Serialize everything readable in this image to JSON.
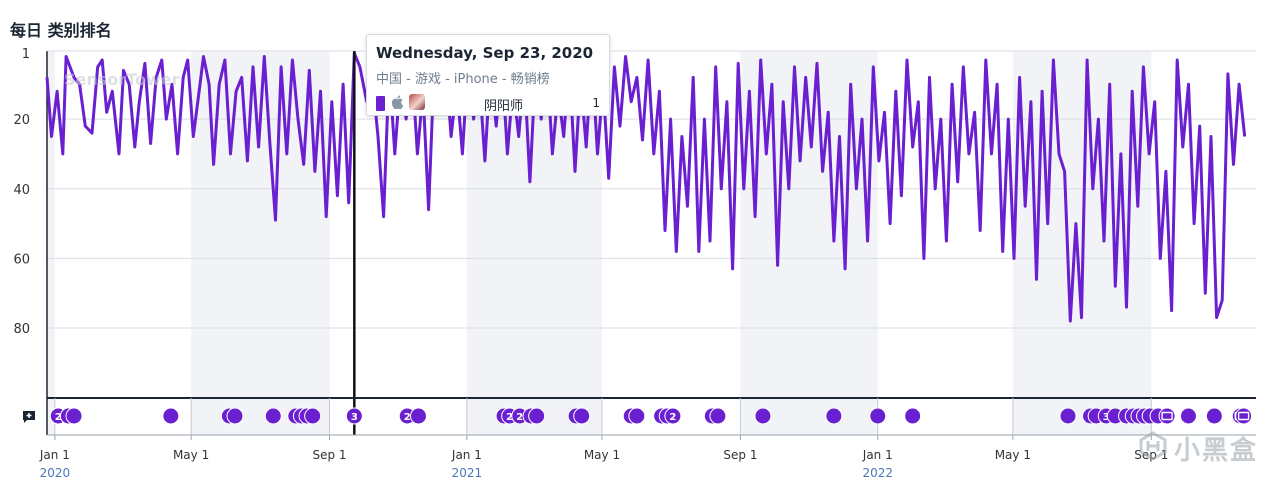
{
  "header": {
    "title": "每日 类别排名"
  },
  "chart_data": {
    "type": "line",
    "title": "每日 类别排名",
    "y_axis": {
      "ticks": [
        "1",
        "20",
        "40",
        "60",
        "80"
      ],
      "values": [
        1,
        20,
        40,
        60,
        80
      ],
      "range": [
        1,
        100
      ],
      "inverted": true
    },
    "x_axis": {
      "ticks": [
        {
          "label": "Jan 1",
          "year": "2020",
          "date": "2020-01-01"
        },
        {
          "label": "May 1",
          "year": "",
          "date": "2020-05-01"
        },
        {
          "label": "Sep 1",
          "year": "",
          "date": "2020-09-01"
        },
        {
          "label": "Jan 1",
          "year": "2021",
          "date": "2021-01-01"
        },
        {
          "label": "May 1",
          "year": "",
          "date": "2021-05-01"
        },
        {
          "label": "Sep 1",
          "year": "",
          "date": "2021-09-01"
        },
        {
          "label": "Jan 1",
          "year": "2022",
          "date": "2022-01-01"
        },
        {
          "label": "May 1",
          "year": "",
          "date": "2022-05-01"
        },
        {
          "label": "Sep 1",
          "year": "",
          "date": "2022-09-01"
        }
      ],
      "range": [
        "2019-12-25",
        "2022-12-03"
      ]
    },
    "series": [
      {
        "name": "阴阳师",
        "color": "#6a1fd1",
        "points": [
          [
            "2019-12-25",
            8
          ],
          [
            "2019-12-29",
            25
          ],
          [
            "2020-01-03",
            12
          ],
          [
            "2020-01-08",
            30
          ],
          [
            "2020-01-11",
            2
          ],
          [
            "2020-01-18",
            8
          ],
          [
            "2020-01-23",
            10
          ],
          [
            "2020-01-28",
            22
          ],
          [
            "2020-02-03",
            24
          ],
          [
            "2020-02-08",
            5
          ],
          [
            "2020-02-12",
            3
          ],
          [
            "2020-02-16",
            18
          ],
          [
            "2020-02-21",
            12
          ],
          [
            "2020-02-27",
            30
          ],
          [
            "2020-03-02",
            6
          ],
          [
            "2020-03-07",
            10
          ],
          [
            "2020-03-12",
            28
          ],
          [
            "2020-03-16",
            15
          ],
          [
            "2020-03-21",
            4
          ],
          [
            "2020-03-26",
            27
          ],
          [
            "2020-03-31",
            8
          ],
          [
            "2020-04-05",
            3
          ],
          [
            "2020-04-09",
            20
          ],
          [
            "2020-04-14",
            10
          ],
          [
            "2020-04-19",
            30
          ],
          [
            "2020-04-24",
            8
          ],
          [
            "2020-04-28",
            3
          ],
          [
            "2020-05-03",
            25
          ],
          [
            "2020-05-07",
            15
          ],
          [
            "2020-05-12",
            2
          ],
          [
            "2020-05-17",
            10
          ],
          [
            "2020-05-21",
            33
          ],
          [
            "2020-05-26",
            10
          ],
          [
            "2020-05-31",
            3
          ],
          [
            "2020-06-05",
            30
          ],
          [
            "2020-06-10",
            12
          ],
          [
            "2020-06-15",
            8
          ],
          [
            "2020-06-20",
            32
          ],
          [
            "2020-06-25",
            5
          ],
          [
            "2020-06-30",
            28
          ],
          [
            "2020-07-05",
            2
          ],
          [
            "2020-07-10",
            27
          ],
          [
            "2020-07-15",
            49
          ],
          [
            "2020-07-20",
            5
          ],
          [
            "2020-07-25",
            30
          ],
          [
            "2020-07-30",
            3
          ],
          [
            "2020-08-04",
            20
          ],
          [
            "2020-08-09",
            33
          ],
          [
            "2020-08-14",
            6
          ],
          [
            "2020-08-19",
            35
          ],
          [
            "2020-08-24",
            12
          ],
          [
            "2020-08-29",
            48
          ],
          [
            "2020-09-03",
            15
          ],
          [
            "2020-09-08",
            42
          ],
          [
            "2020-09-13",
            10
          ],
          [
            "2020-09-18",
            44
          ],
          [
            "2020-09-23",
            1
          ],
          [
            "2020-09-28",
            5
          ],
          [
            "2020-10-04",
            15
          ],
          [
            "2020-10-09",
            8
          ],
          [
            "2020-10-14",
            25
          ],
          [
            "2020-10-19",
            48
          ],
          [
            "2020-10-24",
            5
          ],
          [
            "2020-10-29",
            30
          ],
          [
            "2020-11-03",
            8
          ],
          [
            "2020-11-08",
            20
          ],
          [
            "2020-11-13",
            4
          ],
          [
            "2020-11-18",
            30
          ],
          [
            "2020-11-23",
            12
          ],
          [
            "2020-11-28",
            46
          ],
          [
            "2020-12-03",
            5
          ],
          [
            "2020-12-08",
            18
          ],
          [
            "2020-12-13",
            3
          ],
          [
            "2020-12-18",
            25
          ],
          [
            "2020-12-23",
            10
          ],
          [
            "2020-12-28",
            30
          ],
          [
            "2021-01-02",
            4
          ],
          [
            "2021-01-07",
            20
          ],
          [
            "2021-01-12",
            8
          ],
          [
            "2021-01-17",
            32
          ],
          [
            "2021-01-22",
            5
          ],
          [
            "2021-01-27",
            22
          ],
          [
            "2021-02-01",
            3
          ],
          [
            "2021-02-06",
            30
          ],
          [
            "2021-02-11",
            10
          ],
          [
            "2021-02-16",
            25
          ],
          [
            "2021-02-21",
            6
          ],
          [
            "2021-02-26",
            38
          ],
          [
            "2021-03-03",
            5
          ],
          [
            "2021-03-08",
            20
          ],
          [
            "2021-03-13",
            3
          ],
          [
            "2021-03-18",
            30
          ],
          [
            "2021-03-23",
            12
          ],
          [
            "2021-03-28",
            25
          ],
          [
            "2021-04-02",
            4
          ],
          [
            "2021-04-07",
            35
          ],
          [
            "2021-04-12",
            8
          ],
          [
            "2021-04-17",
            28
          ],
          [
            "2021-04-22",
            2
          ],
          [
            "2021-04-27",
            30
          ],
          [
            "2021-05-02",
            10
          ],
          [
            "2021-05-07",
            37
          ],
          [
            "2021-05-12",
            5
          ],
          [
            "2021-05-17",
            22
          ],
          [
            "2021-05-22",
            2
          ],
          [
            "2021-05-27",
            15
          ],
          [
            "2021-06-01",
            8
          ],
          [
            "2021-06-06",
            26
          ],
          [
            "2021-06-11",
            3
          ],
          [
            "2021-06-16",
            30
          ],
          [
            "2021-06-21",
            12
          ],
          [
            "2021-06-26",
            52
          ],
          [
            "2021-07-01",
            20
          ],
          [
            "2021-07-06",
            58
          ],
          [
            "2021-07-11",
            25
          ],
          [
            "2021-07-16",
            45
          ],
          [
            "2021-07-21",
            8
          ],
          [
            "2021-07-26",
            58
          ],
          [
            "2021-07-31",
            20
          ],
          [
            "2021-08-05",
            55
          ],
          [
            "2021-08-10",
            5
          ],
          [
            "2021-08-15",
            40
          ],
          [
            "2021-08-20",
            15
          ],
          [
            "2021-08-25",
            63
          ],
          [
            "2021-08-30",
            4
          ],
          [
            "2021-09-04",
            40
          ],
          [
            "2021-09-09",
            12
          ],
          [
            "2021-09-14",
            48
          ],
          [
            "2021-09-19",
            3
          ],
          [
            "2021-09-24",
            30
          ],
          [
            "2021-09-29",
            10
          ],
          [
            "2021-10-04",
            62
          ],
          [
            "2021-10-09",
            15
          ],
          [
            "2021-10-14",
            40
          ],
          [
            "2021-10-19",
            5
          ],
          [
            "2021-10-24",
            32
          ],
          [
            "2021-10-29",
            8
          ],
          [
            "2021-11-03",
            28
          ],
          [
            "2021-11-08",
            4
          ],
          [
            "2021-11-13",
            35
          ],
          [
            "2021-11-18",
            18
          ],
          [
            "2021-11-23",
            55
          ],
          [
            "2021-11-28",
            25
          ],
          [
            "2021-12-03",
            63
          ],
          [
            "2021-12-08",
            10
          ],
          [
            "2021-12-13",
            40
          ],
          [
            "2021-12-18",
            20
          ],
          [
            "2021-12-23",
            55
          ],
          [
            "2021-12-28",
            5
          ],
          [
            "2022-01-02",
            32
          ],
          [
            "2022-01-07",
            18
          ],
          [
            "2022-01-12",
            50
          ],
          [
            "2022-01-17",
            12
          ],
          [
            "2022-01-22",
            42
          ],
          [
            "2022-01-27",
            3
          ],
          [
            "2022-02-01",
            28
          ],
          [
            "2022-02-06",
            15
          ],
          [
            "2022-02-11",
            60
          ],
          [
            "2022-02-16",
            8
          ],
          [
            "2022-02-21",
            40
          ],
          [
            "2022-02-26",
            20
          ],
          [
            "2022-03-03",
            55
          ],
          [
            "2022-03-08",
            10
          ],
          [
            "2022-03-13",
            38
          ],
          [
            "2022-03-18",
            5
          ],
          [
            "2022-03-23",
            30
          ],
          [
            "2022-03-28",
            18
          ],
          [
            "2022-04-02",
            52
          ],
          [
            "2022-04-07",
            3
          ],
          [
            "2022-04-12",
            30
          ],
          [
            "2022-04-17",
            10
          ],
          [
            "2022-04-22",
            58
          ],
          [
            "2022-04-27",
            20
          ],
          [
            "2022-05-02",
            60
          ],
          [
            "2022-05-07",
            8
          ],
          [
            "2022-05-12",
            45
          ],
          [
            "2022-05-17",
            15
          ],
          [
            "2022-05-22",
            66
          ],
          [
            "2022-05-27",
            12
          ],
          [
            "2022-06-01",
            50
          ],
          [
            "2022-06-06",
            3
          ],
          [
            "2022-06-11",
            30
          ],
          [
            "2022-06-16",
            35
          ],
          [
            "2022-06-21",
            78
          ],
          [
            "2022-06-26",
            50
          ],
          [
            "2022-07-01",
            77
          ],
          [
            "2022-07-06",
            3
          ],
          [
            "2022-07-11",
            40
          ],
          [
            "2022-07-16",
            20
          ],
          [
            "2022-07-21",
            55
          ],
          [
            "2022-07-26",
            10
          ],
          [
            "2022-07-31",
            68
          ],
          [
            "2022-08-05",
            30
          ],
          [
            "2022-08-10",
            74
          ],
          [
            "2022-08-15",
            12
          ],
          [
            "2022-08-20",
            45
          ],
          [
            "2022-08-25",
            5
          ],
          [
            "2022-08-30",
            30
          ],
          [
            "2022-09-04",
            15
          ],
          [
            "2022-09-09",
            60
          ],
          [
            "2022-09-14",
            35
          ],
          [
            "2022-09-19",
            75
          ],
          [
            "2022-09-24",
            3
          ],
          [
            "2022-09-29",
            28
          ],
          [
            "2022-10-04",
            10
          ],
          [
            "2022-10-09",
            50
          ],
          [
            "2022-10-14",
            22
          ],
          [
            "2022-10-19",
            70
          ],
          [
            "2022-10-24",
            25
          ],
          [
            "2022-10-29",
            77
          ],
          [
            "2022-11-03",
            72
          ],
          [
            "2022-11-08",
            7
          ],
          [
            "2022-11-13",
            33
          ],
          [
            "2022-11-18",
            10
          ],
          [
            "2022-11-23",
            25
          ]
        ]
      }
    ],
    "crosshair_date": "2020-09-23",
    "annotation_markers": [
      {
        "date": "2020-01-04",
        "label": "2"
      },
      {
        "date": "2020-01-13",
        "label": ""
      },
      {
        "date": "2020-01-18",
        "label": ""
      },
      {
        "date": "2020-04-13",
        "label": ""
      },
      {
        "date": "2020-06-04",
        "label": ""
      },
      {
        "date": "2020-06-09",
        "label": ""
      },
      {
        "date": "2020-07-13",
        "label": ""
      },
      {
        "date": "2020-08-02",
        "label": ""
      },
      {
        "date": "2020-08-07",
        "label": ""
      },
      {
        "date": "2020-08-12",
        "label": ""
      },
      {
        "date": "2020-08-17",
        "label": ""
      },
      {
        "date": "2020-09-23",
        "label": "3"
      },
      {
        "date": "2020-11-09",
        "label": "2"
      },
      {
        "date": "2020-11-19",
        "label": ""
      },
      {
        "date": "2021-02-03",
        "label": ""
      },
      {
        "date": "2021-02-08",
        "label": "2"
      },
      {
        "date": "2021-02-17",
        "label": "2"
      },
      {
        "date": "2021-02-27",
        "label": ""
      },
      {
        "date": "2021-03-04",
        "label": ""
      },
      {
        "date": "2021-04-08",
        "label": ""
      },
      {
        "date": "2021-04-13",
        "label": ""
      },
      {
        "date": "2021-05-27",
        "label": ""
      },
      {
        "date": "2021-06-01",
        "label": ""
      },
      {
        "date": "2021-06-23",
        "label": ""
      },
      {
        "date": "2021-06-28",
        "label": ""
      },
      {
        "date": "2021-07-03",
        "label": "2"
      },
      {
        "date": "2021-08-07",
        "label": ""
      },
      {
        "date": "2021-08-12",
        "label": ""
      },
      {
        "date": "2021-09-21",
        "label": ""
      },
      {
        "date": "2021-11-23",
        "label": ""
      },
      {
        "date": "2022-01-01",
        "label": ""
      },
      {
        "date": "2022-02-01",
        "label": ""
      },
      {
        "date": "2022-06-19",
        "label": ""
      },
      {
        "date": "2022-07-09",
        "label": ""
      },
      {
        "date": "2022-07-14",
        "label": ""
      },
      {
        "date": "2022-07-23",
        "label": "3"
      },
      {
        "date": "2022-07-31",
        "label": ""
      },
      {
        "date": "2022-08-10",
        "label": ""
      },
      {
        "date": "2022-08-16",
        "label": ""
      },
      {
        "date": "2022-08-21",
        "label": ""
      },
      {
        "date": "2022-08-26",
        "label": ""
      },
      {
        "date": "2022-08-31",
        "label": ""
      },
      {
        "date": "2022-09-07",
        "label": ""
      },
      {
        "date": "2022-09-15",
        "label": "ticket"
      },
      {
        "date": "2022-10-04",
        "label": ""
      },
      {
        "date": "2022-10-27",
        "label": ""
      },
      {
        "date": "2022-11-19",
        "label": "ticket"
      },
      {
        "date": "2022-11-22",
        "label": "ticket"
      }
    ],
    "grid": true,
    "shaded_bands": "alternating 4-month bands"
  },
  "tooltip": {
    "date": "Wednesday, Sep 23, 2020",
    "subtitle": "中国 - 游戏 - iPhone - 畅销榜",
    "app_name": "阴阳师",
    "rank": "1",
    "swatch_color": "#6a1fd1",
    "icons": [
      "apple-icon",
      "app-icon"
    ]
  },
  "watermark": "SensorTower",
  "corner_watermark": "小黑盒",
  "colors": {
    "line": "#6a1fd1",
    "marker": "#6a1fd1",
    "band": "#f1f3f6",
    "axis": "#1b2533"
  }
}
